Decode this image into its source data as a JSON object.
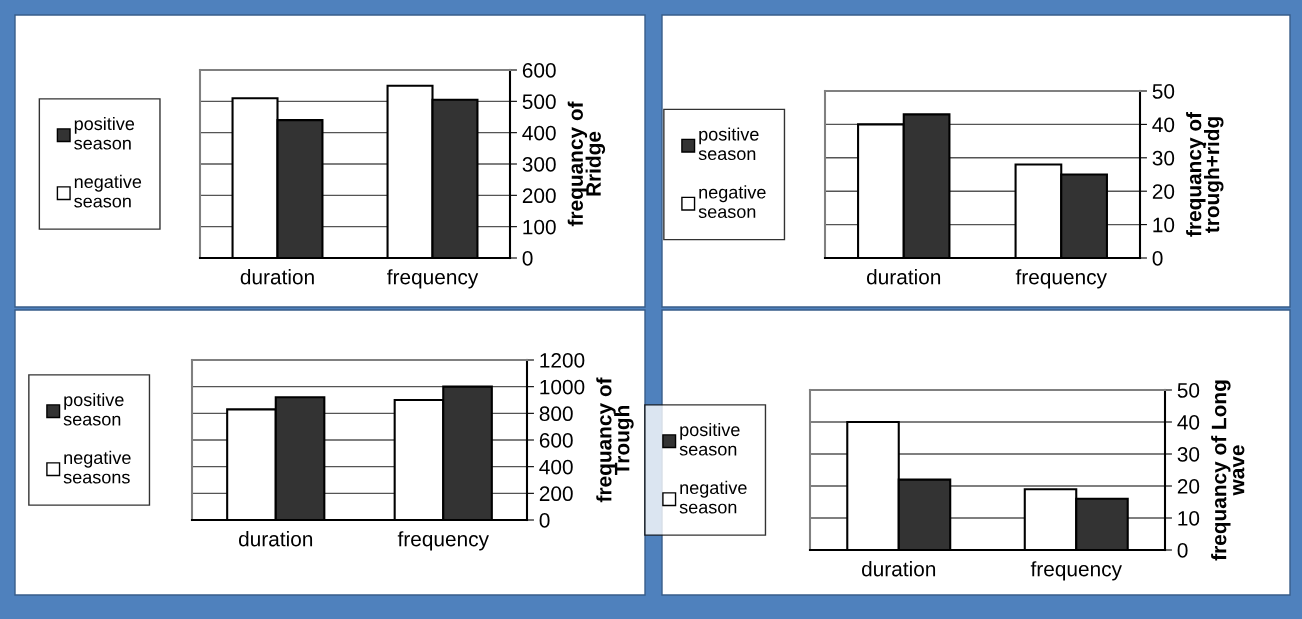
{
  "chart_data": [
    {
      "type": "bar",
      "categories": [
        "duration",
        "frequency"
      ],
      "ylabel": "frequancy of\nRridge",
      "ylim": [
        0,
        600
      ],
      "yticks": [
        0,
        100,
        200,
        300,
        400,
        500,
        600
      ],
      "grid": "y",
      "legend": "left",
      "series": [
        {
          "name": "negative\nseason",
          "color": "#ffffff",
          "values": [
            510,
            550
          ]
        },
        {
          "name": "positive\nseason",
          "color": "#333333",
          "values": [
            440,
            505
          ]
        }
      ]
    },
    {
      "type": "bar",
      "categories": [
        "duration",
        "frequency"
      ],
      "ylabel": "frequancy of\ntrough+ridg",
      "ylim": [
        0,
        50
      ],
      "yticks": [
        0,
        10,
        20,
        30,
        40,
        50
      ],
      "grid": "y",
      "legend": "left",
      "series": [
        {
          "name": "negative\nseason",
          "color": "#ffffff",
          "values": [
            40,
            28
          ]
        },
        {
          "name": "positive\nseason",
          "color": "#333333",
          "values": [
            43,
            25
          ]
        }
      ]
    },
    {
      "type": "bar",
      "categories": [
        "duration",
        "frequency"
      ],
      "ylabel": "frequancy of\nTrough",
      "ylim": [
        0,
        1200
      ],
      "yticks": [
        0,
        200,
        400,
        600,
        800,
        1000,
        1200
      ],
      "grid": "y",
      "legend": "left",
      "series": [
        {
          "name": "negative\nseasons",
          "color": "#ffffff",
          "values": [
            830,
            900
          ]
        },
        {
          "name": "positive\nseason",
          "color": "#333333",
          "values": [
            920,
            1000
          ]
        }
      ]
    },
    {
      "type": "bar",
      "categories": [
        "duration",
        "frequency"
      ],
      "ylabel": "frequancy of Long\nwave",
      "ylim": [
        0,
        50
      ],
      "yticks": [
        0,
        10,
        20,
        30,
        40,
        50
      ],
      "grid": "y",
      "legend": "left",
      "series": [
        {
          "name": "negative\nseason",
          "color": "#ffffff",
          "values": [
            40,
            19
          ]
        },
        {
          "name": "positive\nseason",
          "color": "#333333",
          "values": [
            22,
            16
          ]
        }
      ]
    }
  ]
}
